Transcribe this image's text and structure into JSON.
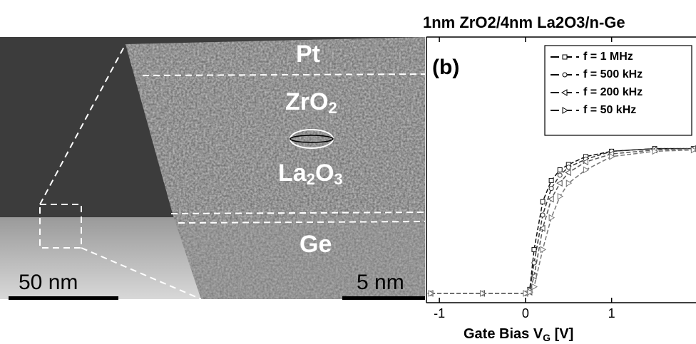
{
  "figure_a": {
    "layers": {
      "pt": "Pt",
      "zro2": {
        "main": "ZrO",
        "sub": "2"
      },
      "la2o3": [
        "La",
        "2",
        "O",
        "3"
      ],
      "ge": "Ge"
    },
    "scale_bar_low": "50 nm",
    "scale_bar_high": "5 nm"
  },
  "chart_data": {
    "type": "line",
    "title": "1nm ZrO2/4nm La2O3/n-Ge",
    "panel_label": "(b)",
    "x_label": {
      "main": "Gate Bias V",
      "sub": "G",
      "unit": " [V]"
    },
    "x": [
      -1.1,
      -0.5,
      0,
      0.05,
      0.1,
      0.2,
      0.3,
      0.4,
      0.5,
      0.7,
      1.0,
      1.5,
      1.95
    ],
    "xlim": [
      -1.15,
      1.98
    ],
    "xticks": [
      -1,
      0,
      1
    ],
    "ylim": [
      0,
      1
    ],
    "series": [
      {
        "name": "f = 1 MHz",
        "color": "#111",
        "marker": "square",
        "values": [
          0.035,
          0.035,
          0.035,
          0.05,
          0.2,
          0.38,
          0.46,
          0.5,
          0.52,
          0.55,
          0.57,
          0.58,
          0.58
        ]
      },
      {
        "name": "f = 500 kHz",
        "color": "#333",
        "marker": "circle",
        "values": [
          0.035,
          0.035,
          0.035,
          0.045,
          0.15,
          0.33,
          0.43,
          0.48,
          0.51,
          0.54,
          0.57,
          0.58,
          0.58
        ]
      },
      {
        "name": "f = 200 kHz",
        "color": "#555",
        "marker": "triangle-left",
        "values": [
          0.035,
          0.035,
          0.035,
          0.04,
          0.1,
          0.28,
          0.39,
          0.45,
          0.49,
          0.53,
          0.56,
          0.575,
          0.58
        ]
      },
      {
        "name": "f = 50 kHz",
        "color": "#777",
        "marker": "triangle-right",
        "values": [
          0.035,
          0.035,
          0.035,
          0.04,
          0.06,
          0.2,
          0.32,
          0.4,
          0.45,
          0.5,
          0.55,
          0.57,
          0.575
        ]
      }
    ]
  }
}
